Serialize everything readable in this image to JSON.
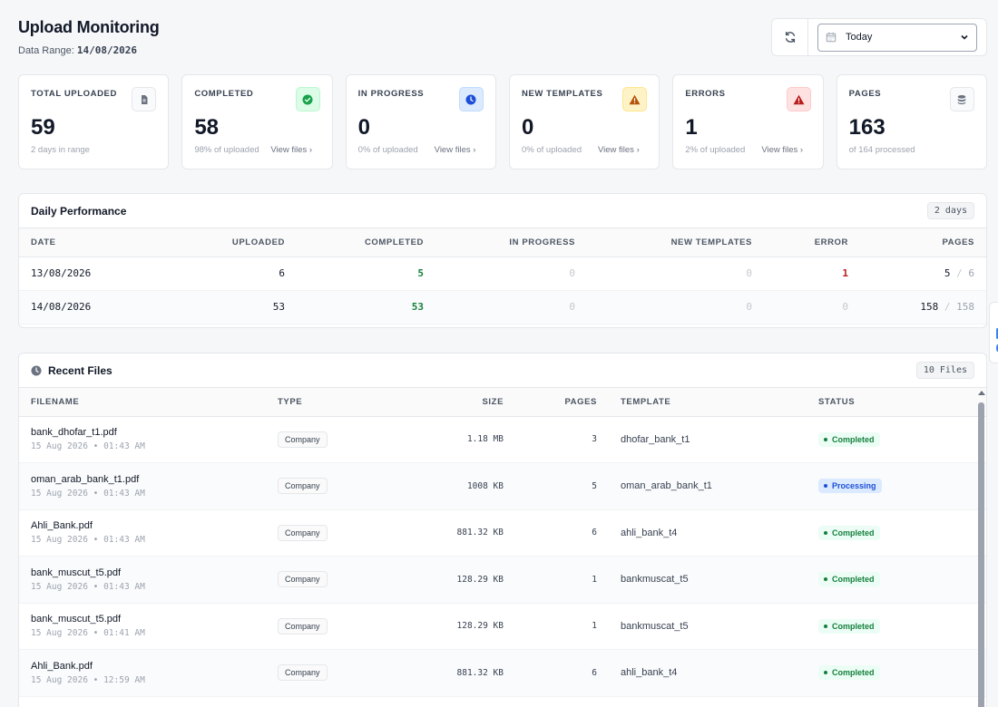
{
  "header": {
    "title": "Upload Monitoring",
    "range_label": "Data Range:",
    "range_value": "14/08/2026"
  },
  "controls": {
    "date_value": "Today",
    "refresh_icon": "refresh-icon",
    "calendar_icon": "calendar-icon"
  },
  "cards": [
    {
      "label": "TOTAL UPLOADED",
      "value": "59",
      "sub": "2 days in range",
      "link": "",
      "icon": "document-icon",
      "tone": "gray"
    },
    {
      "label": "COMPLETED",
      "value": "58",
      "sub": "98% of uploaded",
      "link": "View files ›",
      "icon": "check-circle-icon",
      "tone": "green"
    },
    {
      "label": "IN PROGRESS",
      "value": "0",
      "sub": "0% of uploaded",
      "link": "View files ›",
      "icon": "clock-icon",
      "tone": "blue"
    },
    {
      "label": "NEW TEMPLATES",
      "value": "0",
      "sub": "0% of uploaded",
      "link": "View files ›",
      "icon": "warning-icon",
      "tone": "amber"
    },
    {
      "label": "ERRORS",
      "value": "1",
      "sub": "2% of uploaded",
      "link": "View files ›",
      "icon": "alert-icon",
      "tone": "red"
    },
    {
      "label": "PAGES",
      "value": "163",
      "sub": "of 164 processed",
      "link": "",
      "icon": "database-icon",
      "tone": "gray"
    }
  ],
  "performance": {
    "title": "Daily Performance",
    "badge": "2 days",
    "columns": [
      "DATE",
      "UPLOADED",
      "COMPLETED",
      "IN PROGRESS",
      "NEW TEMPLATES",
      "ERROR",
      "PAGES"
    ],
    "rows": [
      {
        "date": "13/08/2026",
        "uploaded": "6",
        "completed": "5",
        "in_progress": "0",
        "new_templates": "0",
        "error": "1",
        "pages_done": "5",
        "pages_sep": "/",
        "pages_total": "6"
      },
      {
        "date": "14/08/2026",
        "uploaded": "53",
        "completed": "53",
        "in_progress": "0",
        "new_templates": "0",
        "error": "0",
        "pages_done": "158",
        "pages_sep": "/",
        "pages_total": "158"
      }
    ]
  },
  "files": {
    "title": "Recent Files",
    "badge": "10 Files",
    "columns": [
      "FILENAME",
      "TYPE",
      "SIZE",
      "PAGES",
      "TEMPLATE",
      "STATUS"
    ],
    "rows": [
      {
        "name": "bank_dhofar_t1.pdf",
        "date": "15 Aug 2026 • 01:43 AM",
        "type": "Company",
        "size": "1.18 MB",
        "pages": "3",
        "template": "dhofar_bank_t1",
        "status": "Completed"
      },
      {
        "name": "oman_arab_bank_t1.pdf",
        "date": "15 Aug 2026 • 01:43 AM",
        "type": "Company",
        "size": "1008 KB",
        "pages": "5",
        "template": "oman_arab_bank_t1",
        "status": "Processing"
      },
      {
        "name": "Ahli_Bank.pdf",
        "date": "15 Aug 2026 • 01:43 AM",
        "type": "Company",
        "size": "881.32 KB",
        "pages": "6",
        "template": "ahli_bank_t4",
        "status": "Completed"
      },
      {
        "name": "bank_muscut_t5.pdf",
        "date": "15 Aug 2026 • 01:43 AM",
        "type": "Company",
        "size": "128.29 KB",
        "pages": "1",
        "template": "bankmuscat_t5",
        "status": "Completed"
      },
      {
        "name": "bank_muscut_t5.pdf",
        "date": "15 Aug 2026 • 01:41 AM",
        "type": "Company",
        "size": "128.29 KB",
        "pages": "1",
        "template": "bankmuscat_t5",
        "status": "Completed"
      },
      {
        "name": "Ahli_Bank.pdf",
        "date": "15 Aug 2026 • 12:59 AM",
        "type": "Company",
        "size": "881.32 KB",
        "pages": "6",
        "template": "ahli_bank_t4",
        "status": "Completed"
      }
    ]
  }
}
